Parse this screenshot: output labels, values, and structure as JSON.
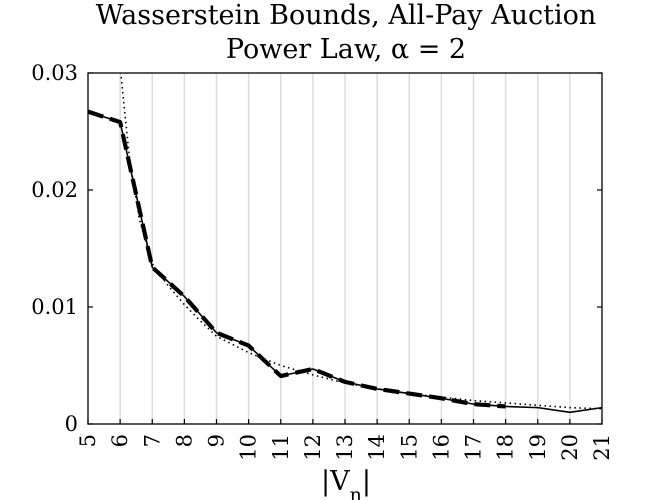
{
  "chart_data": {
    "type": "line",
    "title": [
      "Wasserstein Bounds, All-Pay Auction",
      "Power Law, α = 2"
    ],
    "xlabel": "|Vn|",
    "ylabel": "",
    "xlim": [
      5,
      21
    ],
    "ylim": [
      0,
      0.03
    ],
    "x_ticks": [
      5,
      6,
      7,
      8,
      9,
      10,
      11,
      12,
      13,
      14,
      15,
      16,
      17,
      18,
      19,
      20,
      21
    ],
    "y_ticks": [
      0,
      0.01,
      0.02,
      0.03
    ],
    "y_tick_labels": [
      "0",
      "0.01",
      "0.02",
      "0.03"
    ],
    "grid": "vertical",
    "colors": {
      "line": "#000000",
      "grid": "#dcdcdc",
      "frame": "#000000"
    },
    "series": [
      {
        "style": "solid",
        "x": [
          5,
          6,
          7,
          8,
          9,
          10,
          11,
          12,
          13,
          14,
          15,
          16,
          17,
          18,
          19,
          20,
          21
        ],
        "y": [
          0.0267,
          0.0258,
          0.0134,
          0.0109,
          0.0078,
          0.0067,
          0.0041,
          0.0047,
          0.0036,
          0.003,
          0.0026,
          0.0022,
          0.0017,
          0.0015,
          0.0014,
          0.001,
          0.0014
        ]
      },
      {
        "style": "dashed",
        "x": [
          5,
          6,
          7,
          8,
          9,
          10,
          11,
          12,
          13,
          14,
          15,
          16,
          17,
          18
        ],
        "y": [
          0.0267,
          0.0258,
          0.0134,
          0.0109,
          0.0078,
          0.0067,
          0.0041,
          0.0047,
          0.0036,
          0.003,
          0.0026,
          0.0022,
          0.0017,
          0.0015
        ]
      },
      {
        "style": "dotted",
        "x": [
          6.0,
          6.3,
          6.6,
          7,
          7.5,
          8,
          8.5,
          9,
          10,
          11,
          12,
          13,
          14,
          15,
          16,
          17,
          18,
          19,
          20,
          21
        ],
        "y": [
          0.0305,
          0.0225,
          0.0175,
          0.0137,
          0.0118,
          0.0102,
          0.0088,
          0.0075,
          0.0061,
          0.005,
          0.0042,
          0.0035,
          0.003,
          0.0026,
          0.0023,
          0.002,
          0.0018,
          0.0016,
          0.0014,
          0.0013
        ]
      }
    ]
  }
}
